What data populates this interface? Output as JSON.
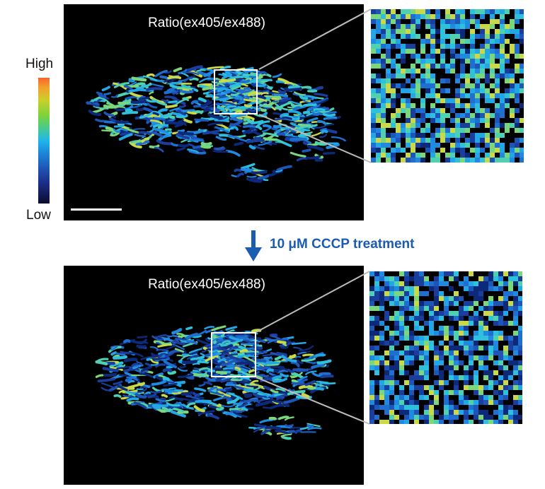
{
  "top_panel": {
    "title": "Ratio(ex405/ex488)"
  },
  "bottom_panel": {
    "title": "Ratio(ex405/ex488)"
  },
  "colorbar": {
    "high_label": "High",
    "low_label": "Low"
  },
  "treatment": {
    "label": "10 μM CCCP treatment",
    "arrow_color": "#1a5cb0"
  }
}
